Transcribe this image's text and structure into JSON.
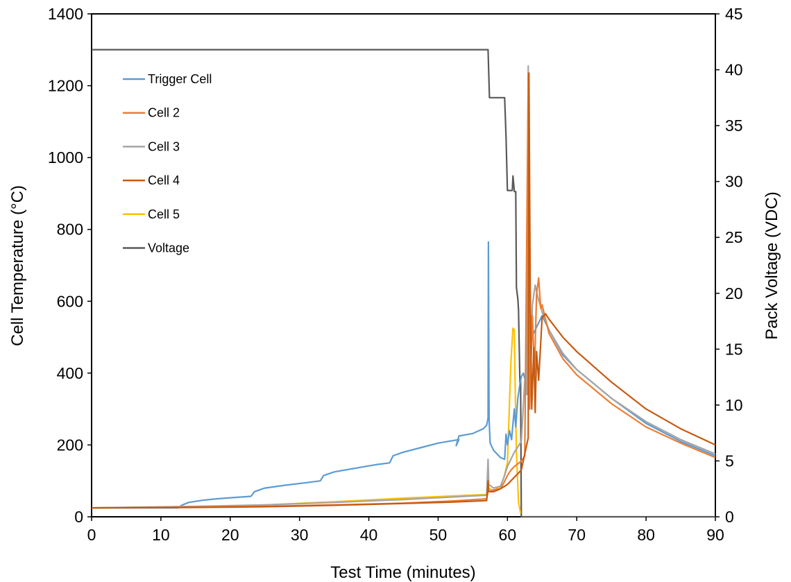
{
  "chart_data": {
    "type": "line",
    "xlabel": "Test Time (minutes)",
    "ylabel": "Cell Temperature (°C)",
    "y2label": "Pack Voltage (VDC)",
    "xlim": [
      0,
      90
    ],
    "ylim": [
      0,
      1400
    ],
    "y2lim": [
      0,
      45
    ],
    "x_ticks": [
      0,
      10,
      20,
      30,
      40,
      50,
      60,
      70,
      80,
      90
    ],
    "y_ticks": [
      0,
      200,
      400,
      600,
      800,
      1000,
      1200,
      1400
    ],
    "y2_ticks": [
      0,
      5,
      10,
      15,
      20,
      25,
      30,
      35,
      40,
      45
    ],
    "grid": false,
    "legend_position": "top-left",
    "series": [
      {
        "name": "Trigger Cell",
        "axis": "left",
        "color": "#5B9BD5",
        "points": [
          [
            0,
            25
          ],
          [
            12.5,
            25
          ],
          [
            13,
            32
          ],
          [
            14,
            40
          ],
          [
            16,
            46
          ],
          [
            18,
            50
          ],
          [
            20,
            53
          ],
          [
            23,
            57
          ],
          [
            23.5,
            70
          ],
          [
            25,
            80
          ],
          [
            28,
            88
          ],
          [
            31,
            95
          ],
          [
            33,
            100
          ],
          [
            33.5,
            115
          ],
          [
            35,
            125
          ],
          [
            38,
            135
          ],
          [
            41,
            145
          ],
          [
            43,
            150
          ],
          [
            43.5,
            170
          ],
          [
            45,
            180
          ],
          [
            48,
            195
          ],
          [
            50,
            205
          ],
          [
            53,
            215
          ],
          [
            52.6,
            198
          ],
          [
            53,
            225
          ],
          [
            55,
            232
          ],
          [
            56.5,
            245
          ],
          [
            57,
            255
          ],
          [
            57.2,
            275
          ],
          [
            57.25,
            765
          ],
          [
            57.35,
            270
          ],
          [
            57.5,
            205
          ],
          [
            58,
            185
          ],
          [
            59,
            165
          ],
          [
            59.6,
            160
          ],
          [
            59.8,
            230
          ],
          [
            60,
            200
          ],
          [
            60.3,
            240
          ],
          [
            60.6,
            215
          ],
          [
            60.8,
            260
          ],
          [
            61,
            300
          ],
          [
            61.2,
            250
          ],
          [
            61.5,
            330
          ],
          [
            61.8,
            370
          ],
          [
            62,
            390
          ],
          [
            62.3,
            400
          ],
          [
            62.7,
            370
          ],
          [
            63,
            380
          ],
          [
            63.2,
            420
          ],
          [
            63.5,
            500
          ],
          [
            64,
            520
          ],
          [
            64.5,
            540
          ],
          [
            65,
            560
          ],
          [
            65.5,
            540
          ],
          [
            66,
            520
          ],
          [
            68,
            450
          ],
          [
            70,
            410
          ],
          [
            75,
            330
          ],
          [
            80,
            260
          ],
          [
            85,
            210
          ],
          [
            90,
            170
          ]
        ]
      },
      {
        "name": "Cell 2",
        "axis": "left",
        "color": "#ED7D31",
        "points": [
          [
            0,
            25
          ],
          [
            15,
            27
          ],
          [
            25,
            29
          ],
          [
            35,
            33
          ],
          [
            45,
            38
          ],
          [
            52,
            44
          ],
          [
            57,
            50
          ],
          [
            57.2,
            70
          ],
          [
            58,
            75
          ],
          [
            59,
            78
          ],
          [
            59.5,
            95
          ],
          [
            60,
            115
          ],
          [
            60.5,
            130
          ],
          [
            61,
            140
          ],
          [
            62,
            155
          ],
          [
            62.5,
            170
          ],
          [
            63,
            1235
          ],
          [
            63.2,
            300
          ],
          [
            63.6,
            560
          ],
          [
            63.9,
            400
          ],
          [
            64.2,
            620
          ],
          [
            64.5,
            665
          ],
          [
            64.8,
            580
          ],
          [
            65,
            590
          ],
          [
            65.5,
            550
          ],
          [
            66,
            510
          ],
          [
            68,
            440
          ],
          [
            70,
            395
          ],
          [
            75,
            315
          ],
          [
            80,
            250
          ],
          [
            85,
            205
          ],
          [
            90,
            165
          ]
        ]
      },
      {
        "name": "Cell 3",
        "axis": "left",
        "color": "#A5A5A5",
        "points": [
          [
            0,
            25
          ],
          [
            15,
            29
          ],
          [
            25,
            33
          ],
          [
            35,
            40
          ],
          [
            45,
            48
          ],
          [
            52,
            55
          ],
          [
            57,
            60
          ],
          [
            57.2,
            160
          ],
          [
            57.3,
            90
          ],
          [
            58,
            80
          ],
          [
            59,
            85
          ],
          [
            59.5,
            110
          ],
          [
            60,
            140
          ],
          [
            61,
            180
          ],
          [
            62,
            210
          ],
          [
            62.5,
            380
          ],
          [
            62.8,
            340
          ],
          [
            63,
            1255
          ],
          [
            63.2,
            350
          ],
          [
            63.6,
            590
          ],
          [
            64,
            645
          ],
          [
            64.4,
            610
          ],
          [
            65,
            570
          ],
          [
            66,
            520
          ],
          [
            68,
            455
          ],
          [
            70,
            410
          ],
          [
            75,
            330
          ],
          [
            80,
            265
          ],
          [
            85,
            215
          ],
          [
            90,
            175
          ]
        ]
      },
      {
        "name": "Cell 4",
        "axis": "left",
        "color": "#C55A11",
        "points": [
          [
            0,
            25
          ],
          [
            15,
            26
          ],
          [
            25,
            28
          ],
          [
            35,
            32
          ],
          [
            45,
            37
          ],
          [
            52,
            41
          ],
          [
            57,
            45
          ],
          [
            57.2,
            100
          ],
          [
            57.3,
            70
          ],
          [
            58,
            70
          ],
          [
            59,
            78
          ],
          [
            60,
            90
          ],
          [
            61,
            110
          ],
          [
            62,
            130
          ],
          [
            63,
            220
          ],
          [
            63.1,
            1235
          ],
          [
            63.3,
            600
          ],
          [
            63.5,
            300
          ],
          [
            63.8,
            470
          ],
          [
            64,
            290
          ],
          [
            64.2,
            460
          ],
          [
            64.5,
            380
          ],
          [
            65,
            555
          ],
          [
            65.5,
            565
          ],
          [
            66,
            550
          ],
          [
            68,
            500
          ],
          [
            70,
            460
          ],
          [
            75,
            375
          ],
          [
            80,
            300
          ],
          [
            85,
            245
          ],
          [
            90,
            200
          ]
        ]
      },
      {
        "name": "Cell 5",
        "axis": "left",
        "color": "#FFC000",
        "points": [
          [
            0,
            25
          ],
          [
            15,
            28
          ],
          [
            25,
            33
          ],
          [
            35,
            42
          ],
          [
            45,
            52
          ],
          [
            52,
            58
          ],
          [
            57,
            62
          ],
          [
            57.3,
            80
          ],
          [
            58,
            72
          ],
          [
            59,
            85
          ],
          [
            59.5,
            110
          ],
          [
            60,
            150
          ],
          [
            60.5,
            430
          ],
          [
            60.8,
            525
          ],
          [
            61,
            520
          ],
          [
            61.1,
            380
          ],
          [
            61.3,
            180
          ],
          [
            61.6,
            40
          ],
          [
            61.9,
            10
          ]
        ]
      },
      {
        "name": "Voltage",
        "axis": "right",
        "color": "#595959",
        "points": [
          [
            0,
            41.8
          ],
          [
            57,
            41.8
          ],
          [
            57.2,
            41.8
          ],
          [
            57.4,
            37.5
          ],
          [
            59.6,
            37.5
          ],
          [
            59.8,
            34
          ],
          [
            60,
            29.2
          ],
          [
            60.7,
            29.2
          ],
          [
            60.8,
            30.5
          ],
          [
            61,
            29.1
          ],
          [
            61.2,
            29.1
          ],
          [
            61.3,
            20.5
          ],
          [
            61.5,
            19.5
          ],
          [
            61.6,
            18.5
          ],
          [
            61.8,
            12
          ],
          [
            61.9,
            12.3
          ],
          [
            62,
            0
          ],
          [
            90,
            0
          ]
        ]
      }
    ]
  }
}
